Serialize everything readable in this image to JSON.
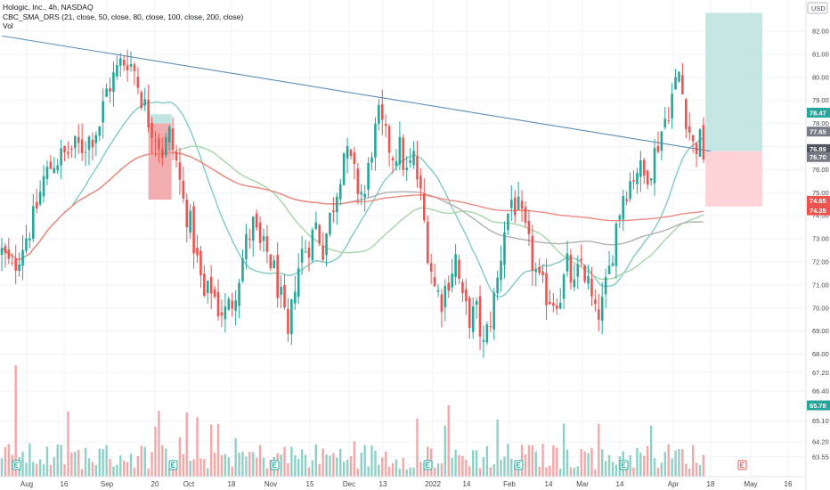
{
  "header": {
    "title": "Hologic, Inc., 4h, NASDAQ",
    "indicator": "CBC_SMA_DRS (21, close, 50, close, 80, close, 100, close, 200, close)",
    "volume_label": "Vol",
    "currency": "USD"
  },
  "chart_data": {
    "type": "candlestick",
    "ylim": [
      63.0,
      83.2
    ],
    "y_ticks": [
      63.55,
      64.2,
      65.1,
      66.4,
      67.2,
      68.0,
      69.0,
      70.0,
      71.0,
      72.0,
      73.0,
      74.0,
      75.0,
      76.0,
      77.0,
      78.0,
      79.0,
      80.0,
      81.0,
      82.0
    ],
    "y_tick_labels": [
      "63.55",
      "64.20",
      "65.10",
      "66.40",
      "67.20",
      "68.00",
      "69.00",
      "70.00",
      "71.00",
      "72.00",
      "73.00",
      "74.00",
      "75.00",
      "76.00",
      "77.00",
      "78.00",
      "79.00",
      "80.00",
      "81.00",
      "82.00"
    ],
    "x_labels": [
      "Aug",
      "16",
      "Sep",
      "20",
      "Oct",
      "18",
      "Nov",
      "15",
      "Dec",
      "13",
      "2022",
      "14",
      "Feb",
      "14",
      "Mar",
      "14",
      "Apr",
      "18",
      "May",
      "16"
    ],
    "price_path": [
      [
        0,
        72.4
      ],
      [
        3,
        71.6
      ],
      [
        6,
        72.8
      ],
      [
        9,
        73.8
      ],
      [
        12,
        75.6
      ],
      [
        15,
        76.4
      ],
      [
        18,
        76.6
      ],
      [
        20,
        76.9
      ],
      [
        23,
        77.0
      ],
      [
        26,
        77.5
      ],
      [
        28,
        78.0
      ],
      [
        30,
        79.4
      ],
      [
        32,
        80.0
      ],
      [
        34,
        80.6
      ],
      [
        36,
        80.8
      ],
      [
        38,
        80.3
      ],
      [
        40,
        79.2
      ],
      [
        42,
        78.2
      ],
      [
        44,
        77.6
      ],
      [
        46,
        76.8
      ],
      [
        48,
        77.5
      ],
      [
        50,
        76.3
      ],
      [
        52,
        74.6
      ],
      [
        54,
        73.6
      ],
      [
        56,
        72.0
      ],
      [
        58,
        70.4
      ],
      [
        60,
        70.9
      ],
      [
        62,
        70.0
      ],
      [
        64,
        69.8
      ],
      [
        66,
        70.3
      ],
      [
        68,
        71.5
      ],
      [
        70,
        72.8
      ],
      [
        72,
        73.6
      ],
      [
        74,
        72.6
      ],
      [
        76,
        72.4
      ],
      [
        78,
        71.6
      ],
      [
        80,
        70.3
      ],
      [
        82,
        68.5
      ],
      [
        84,
        71.2
      ],
      [
        86,
        72.4
      ],
      [
        88,
        72.8
      ],
      [
        90,
        73.6
      ],
      [
        92,
        72.6
      ],
      [
        94,
        73.9
      ],
      [
        96,
        75.2
      ],
      [
        98,
        76.8
      ],
      [
        100,
        76.2
      ],
      [
        102,
        75.2
      ],
      [
        104,
        74.9
      ],
      [
        106,
        77.0
      ],
      [
        108,
        78.2
      ],
      [
        110,
        77.3
      ],
      [
        112,
        76.7
      ],
      [
        114,
        76.9
      ],
      [
        116,
        75.8
      ],
      [
        118,
        76.5
      ],
      [
        120,
        74.8
      ],
      [
        122,
        72.6
      ],
      [
        124,
        70.9
      ],
      [
        126,
        70.4
      ],
      [
        128,
        71.3
      ],
      [
        130,
        72.2
      ],
      [
        132,
        70.2
      ],
      [
        134,
        69.6
      ],
      [
        136,
        69.8
      ],
      [
        138,
        68.3
      ],
      [
        140,
        69.6
      ],
      [
        142,
        71.2
      ],
      [
        144,
        73.5
      ],
      [
        146,
        74.7
      ],
      [
        148,
        74.2
      ],
      [
        150,
        73.2
      ],
      [
        152,
        72.0
      ],
      [
        154,
        71.0
      ],
      [
        156,
        70.6
      ],
      [
        158,
        70.4
      ],
      [
        160,
        70.6
      ],
      [
        162,
        71.8
      ],
      [
        164,
        70.8
      ],
      [
        166,
        72.0
      ],
      [
        168,
        71.0
      ],
      [
        170,
        69.6
      ],
      [
        172,
        70.1
      ],
      [
        174,
        71.6
      ],
      [
        176,
        73.6
      ],
      [
        178,
        75.0
      ],
      [
        180,
        75.5
      ],
      [
        182,
        76.1
      ],
      [
        184,
        75.7
      ],
      [
        186,
        76.2
      ],
      [
        188,
        77.2
      ],
      [
        190,
        78.2
      ],
      [
        192,
        79.2
      ],
      [
        194,
        80.2
      ],
      [
        196,
        78.4
      ],
      [
        198,
        77.0
      ],
      [
        200,
        77.2
      ],
      [
        201,
        76.7
      ]
    ],
    "candle_count": 202,
    "sma21_label": "SMA 21",
    "trendline": {
      "from": [
        0,
        81.8
      ],
      "to": [
        203,
        76.8
      ]
    },
    "position_long": {
      "from_index": 198,
      "to_index": 206,
      "entry": 76.8,
      "target": 82.8,
      "stop": 74.4
    },
    "position_short": {
      "from_index": 42,
      "to_index": 48,
      "entry": 78.0,
      "target": 78.4,
      "stop": 74.7
    },
    "badges": [
      {
        "label": "78.47",
        "value": 78.47,
        "color": "#26a69a"
      },
      {
        "label": "77.65",
        "value": 77.65,
        "color": "#787b86"
      },
      {
        "label": "76.89",
        "value": 76.89,
        "color": "#50535e"
      },
      {
        "label": "76.70",
        "value": 76.7,
        "color": "#787b86"
      },
      {
        "label": "74.65",
        "value": 74.65,
        "color": "#ef5350"
      },
      {
        "label": "74.35",
        "value": 74.35,
        "color": "#ef5350"
      },
      {
        "label": "65.78",
        "value": 65.78,
        "color": "#26a69a"
      }
    ],
    "colors": {
      "up": "#26a69a",
      "down": "#ef5350",
      "vol_up": "#8fd0c6",
      "vol_down": "#f4a7a6",
      "sma21": "#80cbc4",
      "sma50": "#a5d6a7",
      "sma100": "#b0b0b0",
      "sma200": "#ef8a80",
      "trend": "#5b8db8",
      "grid": "#f0f3fa"
    }
  }
}
